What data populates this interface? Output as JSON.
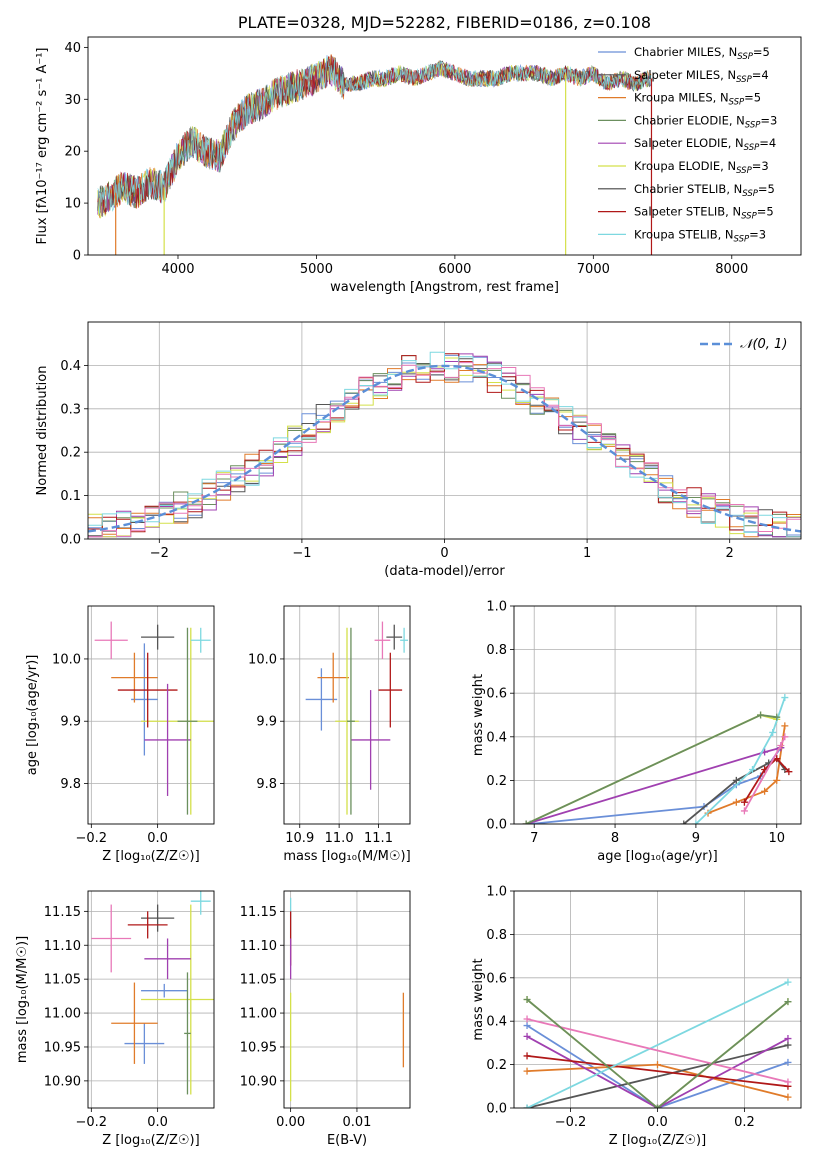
{
  "chart_data": [
    {
      "type": "line",
      "title": "PLATE=0328, MJD=52282, FIBERID=0186, z=0.108",
      "xlabel": "wavelength [Angstrom, rest frame]",
      "ylabel": "Flux [fλ10⁻¹⁷ erg cm⁻² s⁻¹ A⁻¹]",
      "xlim": [
        3350,
        8500
      ],
      "ylim": [
        0,
        42
      ],
      "xticks": [
        "4000",
        "5000",
        "6000",
        "7000",
        "8000"
      ],
      "yticks": [
        "0",
        "10",
        "20",
        "30",
        "40"
      ],
      "grid": false,
      "legend_position": "top-right",
      "legend": [
        {
          "name": "Chabrier MILES, N",
          "sub": "SSP",
          "suffix": "=5",
          "color": "#6a8fd8"
        },
        {
          "name": "Salpeter MILES, N",
          "sub": "SSP",
          "suffix": "=4",
          "color": "#555555"
        },
        {
          "name": "Kroupa MILES, N",
          "sub": "SSP",
          "suffix": "=5",
          "color": "#e07b2a"
        },
        {
          "name": "Chabrier ELODIE, N",
          "sub": "SSP",
          "suffix": "=3",
          "color": "#6b8f5e"
        },
        {
          "name": "Salpeter ELODIE, N",
          "sub": "SSP",
          "suffix": "=4",
          "color": "#a040b0"
        },
        {
          "name": "Kroupa ELODIE, N",
          "sub": "SSP",
          "suffix": "=3",
          "color": "#d4e04a"
        },
        {
          "name": "Chabrier STELIB, N",
          "sub": "SSP",
          "suffix": "=5",
          "color": "#444444"
        },
        {
          "name": "Salpeter STELIB, N",
          "sub": "SSP",
          "suffix": "=5",
          "color": "#b01818"
        },
        {
          "name": "Kroupa STELIB, N",
          "sub": "SSP",
          "suffix": "=3",
          "color": "#7dd8e0"
        }
      ],
      "spectrum_envelope": {
        "x": [
          3420,
          3500,
          3600,
          3700,
          3800,
          3900,
          4000,
          4100,
          4200,
          4300,
          4400,
          4500,
          4600,
          4700,
          4800,
          4900,
          5000,
          5100,
          5200,
          5300,
          5400,
          5500,
          5600,
          5700,
          5800,
          5900,
          6000,
          6100,
          6200,
          6300,
          6400,
          6500,
          6600,
          6700,
          6800,
          6900,
          7000,
          7100,
          7200,
          7300,
          7400
        ],
        "y": [
          10,
          11,
          13,
          12,
          14,
          13,
          19,
          22,
          20,
          19,
          25,
          28,
          29,
          31,
          32,
          33,
          34,
          36,
          33,
          33,
          34,
          34,
          35,
          34,
          35,
          36,
          35,
          34,
          34,
          34,
          35,
          35,
          35,
          34,
          35,
          34,
          35,
          33,
          34,
          33,
          34
        ]
      },
      "drop_lines": [
        {
          "x": 3550,
          "color": "#e07b2a"
        },
        {
          "x": 3900,
          "color": "#d4e04a"
        },
        {
          "x": 6800,
          "color": "#d4e04a"
        },
        {
          "x": 7420,
          "color": "#b01818"
        }
      ]
    },
    {
      "type": "line",
      "xlabel": "(data-model)/error",
      "ylabel": "Normed distribution",
      "xlim": [
        -2.5,
        2.5
      ],
      "ylim": [
        0,
        0.5
      ],
      "xticks": [
        "−2",
        "−1",
        "0",
        "1",
        "2"
      ],
      "yticks": [
        "0.0",
        "0.1",
        "0.2",
        "0.3",
        "0.4"
      ],
      "grid": true,
      "legend_position": "top-right",
      "legend_label": "𝒩(0, 1)",
      "normal_color": "#5b8fd8",
      "histogram_bin_width": 0.1,
      "histogram_colors": [
        "#6a8fd8",
        "#555555",
        "#e07b2a",
        "#6b8f5e",
        "#a040b0",
        "#d4e04a",
        "#b01818",
        "#7dd8e0",
        "#e878b8"
      ]
    },
    {
      "type": "scatter",
      "xlabel": "Z [log₁₀(Z/Z☉)]",
      "ylabel": "age  [log₁₀(age/yr)]",
      "xlim": [
        -0.21,
        0.17
      ],
      "ylim": [
        9.735,
        10.085
      ],
      "xticks": [
        "−0.2",
        "0.0"
      ],
      "yticks": [
        "9.8",
        "9.9",
        "10.0"
      ],
      "grid": true,
      "points": [
        {
          "x": -0.04,
          "y": 9.935,
          "xerr": 0.04,
          "yerr": 0.09,
          "color": "#6a8fd8"
        },
        {
          "x": -0.07,
          "y": 9.97,
          "xerr": 0.07,
          "yerr": 0.04,
          "color": "#e07b2a"
        },
        {
          "x": 0.0,
          "y": 10.035,
          "xerr": 0.05,
          "yerr": 0.02,
          "color": "#555555"
        },
        {
          "x": 0.1,
          "y": 9.9,
          "xerr": 0.15,
          "yerr": 0.15,
          "color": "#d4e04a"
        },
        {
          "x": -0.03,
          "y": 9.95,
          "xerr": 0.09,
          "yerr": 0.06,
          "color": "#b01818"
        },
        {
          "x": 0.03,
          "y": 9.87,
          "xerr": 0.07,
          "yerr": 0.09,
          "color": "#a040b0"
        },
        {
          "x": -0.14,
          "y": 10.03,
          "xerr": 0.05,
          "yerr": 0.03,
          "color": "#e878b8"
        },
        {
          "x": 0.13,
          "y": 10.03,
          "xerr": 0.03,
          "yerr": 0.02,
          "color": "#7dd8e0"
        },
        {
          "x": 0.09,
          "y": 9.9,
          "xerr": 0.03,
          "yerr": 0.15,
          "color": "#6b8f5e"
        }
      ]
    },
    {
      "type": "scatter",
      "xlabel": "mass [log₁₀(M/M☉)]",
      "xlim": [
        10.86,
        11.18
      ],
      "ylim": [
        9.735,
        10.085
      ],
      "xticks": [
        "10.9",
        "11.0",
        "11.1"
      ],
      "yticks": [
        "9.8",
        "9.9",
        "10.0"
      ],
      "grid": true,
      "points": [
        {
          "x": 10.955,
          "y": 9.935,
          "xerr": 0.04,
          "yerr": 0.05,
          "color": "#6a8fd8"
        },
        {
          "x": 10.985,
          "y": 9.97,
          "xerr": 0.04,
          "yerr": 0.04,
          "color": "#e07b2a"
        },
        {
          "x": 11.14,
          "y": 10.035,
          "xerr": 0.02,
          "yerr": 0.02,
          "color": "#555555"
        },
        {
          "x": 11.02,
          "y": 9.9,
          "xerr": 0.03,
          "yerr": 0.15,
          "color": "#d4e04a"
        },
        {
          "x": 11.13,
          "y": 9.95,
          "xerr": 0.03,
          "yerr": 0.06,
          "color": "#b01818"
        },
        {
          "x": 11.08,
          "y": 9.87,
          "xerr": 0.05,
          "yerr": 0.08,
          "color": "#a040b0"
        },
        {
          "x": 11.11,
          "y": 10.03,
          "xerr": 0.02,
          "yerr": 0.03,
          "color": "#e878b8"
        },
        {
          "x": 11.165,
          "y": 10.03,
          "xerr": 0.01,
          "yerr": 0.02,
          "color": "#7dd8e0"
        },
        {
          "x": 11.03,
          "y": 9.9,
          "xerr": 0.01,
          "yerr": 0.15,
          "color": "#6b8f5e"
        }
      ]
    },
    {
      "type": "line",
      "xlabel": "age  [log₁₀(age/yr)]",
      "ylabel": "mass weight",
      "xlim": [
        6.75,
        10.3
      ],
      "ylim": [
        0,
        1
      ],
      "xticks": [
        "7",
        "8",
        "9",
        "10"
      ],
      "yticks": [
        "0.0",
        "0.2",
        "0.4",
        "0.6",
        "0.8",
        "1.0"
      ],
      "grid": true,
      "series": [
        {
          "color": "#6a8fd8",
          "x": [
            6.95,
            9.1,
            9.5,
            9.8,
            10.05
          ],
          "y": [
            0.0,
            0.08,
            0.18,
            0.22,
            0.35
          ]
        },
        {
          "color": "#e07b2a",
          "x": [
            9.15,
            9.5,
            9.85,
            10.0,
            10.1
          ],
          "y": [
            0.05,
            0.1,
            0.15,
            0.2,
            0.45
          ]
        },
        {
          "color": "#555555",
          "x": [
            8.85,
            9.5,
            9.9,
            10.0,
            10.1
          ],
          "y": [
            0.0,
            0.2,
            0.28,
            0.3,
            0.25
          ]
        },
        {
          "color": "#d4e04a",
          "x": [
            6.9,
            9.8,
            10.0
          ],
          "y": [
            0.0,
            0.5,
            0.48
          ]
        },
        {
          "color": "#a040b0",
          "x": [
            6.9,
            9.85,
            10.05
          ],
          "y": [
            0.0,
            0.33,
            0.35
          ]
        },
        {
          "color": "#b01818",
          "x": [
            9.6,
            9.85,
            10.0,
            10.15
          ],
          "y": [
            0.1,
            0.25,
            0.3,
            0.24
          ]
        },
        {
          "color": "#7dd8e0",
          "x": [
            9.0,
            9.7,
            9.95,
            10.1
          ],
          "y": [
            0.0,
            0.25,
            0.42,
            0.58
          ]
        },
        {
          "color": "#6b8f5e",
          "x": [
            6.9,
            9.8,
            10.0
          ],
          "y": [
            0.0,
            0.5,
            0.49
          ]
        },
        {
          "color": "#e878b8",
          "x": [
            9.6,
            10.05,
            10.1
          ],
          "y": [
            0.06,
            0.36,
            0.4
          ]
        }
      ]
    },
    {
      "type": "scatter",
      "xlabel": "Z [log₁₀(Z/Z☉)]",
      "ylabel": "mass [log₁₀(M/M☉)]",
      "xlim": [
        -0.21,
        0.17
      ],
      "ylim": [
        10.86,
        11.18
      ],
      "xticks": [
        "−0.2",
        "0.0"
      ],
      "yticks": [
        "10.90",
        "10.95",
        "11.00",
        "11.05",
        "11.10",
        "11.15"
      ],
      "grid": true,
      "points": [
        {
          "x": -0.04,
          "y": 10.955,
          "xerr": 0.06,
          "yerr": 0.03,
          "color": "#6a8fd8"
        },
        {
          "x": -0.07,
          "y": 10.985,
          "xerr": 0.07,
          "yerr": 0.06,
          "color": "#e07b2a"
        },
        {
          "x": 0.0,
          "y": 11.14,
          "xerr": 0.05,
          "yerr": 0.02,
          "color": "#555555"
        },
        {
          "x": 0.1,
          "y": 11.02,
          "xerr": 0.15,
          "yerr": 0.14,
          "color": "#d4e04a"
        },
        {
          "x": -0.03,
          "y": 11.13,
          "xerr": 0.06,
          "yerr": 0.02,
          "color": "#b01818"
        },
        {
          "x": 0.03,
          "y": 11.08,
          "xerr": 0.07,
          "yerr": 0.03,
          "color": "#a040b0"
        },
        {
          "x": -0.14,
          "y": 11.11,
          "xerr": 0.06,
          "yerr": 0.05,
          "color": "#e878b8"
        },
        {
          "x": 0.13,
          "y": 11.165,
          "xerr": 0.03,
          "yerr": 0.02,
          "color": "#7dd8e0"
        },
        {
          "x": 0.02,
          "y": 11.033,
          "xerr": 0.07,
          "yerr": 0.01,
          "color": "#6a8fd8"
        },
        {
          "x": 0.09,
          "y": 10.97,
          "xerr": 0.01,
          "yerr": 0.09,
          "color": "#6b8f5e"
        }
      ]
    },
    {
      "type": "scatter",
      "xlabel": "E(B-V)",
      "xlim": [
        -0.001,
        0.018
      ],
      "ylim": [
        10.86,
        11.18
      ],
      "xticks": [
        "0.00",
        "0.01"
      ],
      "yticks": [
        "10.90",
        "10.95",
        "11.00",
        "11.05",
        "11.10",
        "11.15"
      ],
      "grid": true,
      "points": [
        {
          "x": 0.0,
          "y": 11.14,
          "xerr": 0,
          "yerr": 0.03,
          "color": "#7dd8e0"
        },
        {
          "x": 0.0,
          "y": 11.11,
          "xerr": 0,
          "yerr": 0.04,
          "color": "#b01818"
        },
        {
          "x": 0.0,
          "y": 10.95,
          "xerr": 0,
          "yerr": 0.08,
          "color": "#d4e04a"
        },
        {
          "x": 0.0,
          "y": 11.08,
          "xerr": 0,
          "yerr": 0.03,
          "color": "#a040b0"
        },
        {
          "x": 0.017,
          "y": 10.975,
          "xerr": 0,
          "yerr": 0.055,
          "color": "#e07b2a"
        }
      ]
    },
    {
      "type": "line",
      "xlabel": "Z [log₁₀(Z/Z☉)]",
      "ylabel": "mass weight",
      "xlim": [
        -0.33,
        0.33
      ],
      "ylim": [
        0,
        1
      ],
      "xticks": [
        "−0.2",
        "0.0",
        "0.2"
      ],
      "yticks": [
        "0.0",
        "0.2",
        "0.4",
        "0.6",
        "0.8",
        "1.0"
      ],
      "grid": true,
      "series": [
        {
          "color": "#6a8fd8",
          "x": [
            -0.3,
            0.0,
            0.3
          ],
          "y": [
            0.38,
            0.0,
            0.21
          ]
        },
        {
          "color": "#e07b2a",
          "x": [
            -0.3,
            0.0,
            0.3
          ],
          "y": [
            0.17,
            0.2,
            0.05
          ]
        },
        {
          "color": "#555555",
          "x": [
            -0.3,
            0.3
          ],
          "y": [
            0.0,
            0.29
          ]
        },
        {
          "color": "#d4e04a",
          "x": [
            -0.3,
            0.0,
            0.3
          ],
          "y": [
            0.5,
            0.0,
            0.49
          ]
        },
        {
          "color": "#a040b0",
          "x": [
            -0.3,
            0.0,
            0.3
          ],
          "y": [
            0.33,
            0.0,
            0.32
          ]
        },
        {
          "color": "#b01818",
          "x": [
            -0.3,
            0.3
          ],
          "y": [
            0.24,
            0.1
          ]
        },
        {
          "color": "#7dd8e0",
          "x": [
            -0.3,
            0.3
          ],
          "y": [
            0.0,
            0.58
          ]
        },
        {
          "color": "#e878b8",
          "x": [
            -0.3,
            0.3
          ],
          "y": [
            0.41,
            0.12
          ]
        },
        {
          "color": "#6b8f5e",
          "x": [
            -0.3,
            0.0,
            0.3
          ],
          "y": [
            0.5,
            0.0,
            0.49
          ]
        }
      ]
    }
  ]
}
